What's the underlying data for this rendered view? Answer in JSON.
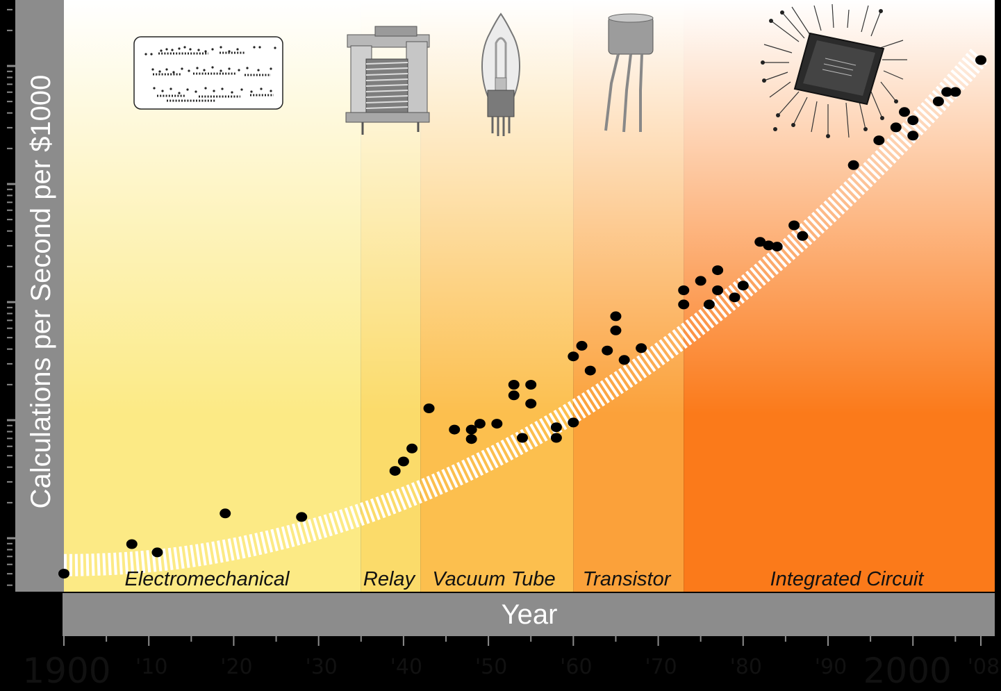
{
  "chart_data": {
    "type": "scatter",
    "title": "",
    "xlabel": "Year",
    "ylabel": "Calculations per Second per $1000",
    "yscale": "log",
    "xlim": [
      1900,
      2008
    ],
    "x_tick_labels": [
      {
        "x": 1900,
        "label": "1900"
      },
      {
        "x": 1910,
        "label": "'10"
      },
      {
        "x": 1920,
        "label": "'20"
      },
      {
        "x": 1930,
        "label": "'30"
      },
      {
        "x": 1940,
        "label": "'40"
      },
      {
        "x": 1950,
        "label": "'50"
      },
      {
        "x": 1960,
        "label": "'60"
      },
      {
        "x": 1970,
        "label": "'70"
      },
      {
        "x": 1980,
        "label": "'80"
      },
      {
        "x": 1990,
        "label": "'90"
      },
      {
        "x": 2000,
        "label": "2000"
      },
      {
        "x": 2008,
        "label": "'08"
      }
    ],
    "eras": [
      {
        "label": "Electromechanical",
        "start": 1900,
        "end": 1935,
        "color": "#fcea85"
      },
      {
        "label": "Relay",
        "start": 1935,
        "end": 1942,
        "color": "#fbdb6a"
      },
      {
        "label": "Vacuum Tube",
        "start": 1942,
        "end": 1960,
        "color": "#fcbf4e"
      },
      {
        "label": "Transistor",
        "start": 1960,
        "end": 1973,
        "color": "#fba13a"
      },
      {
        "label": "Integrated Circuit",
        "start": 1973,
        "end": 2008,
        "color": "#fb7a1a"
      }
    ],
    "era_icons": [
      "punch-card-icon",
      "relay-icon",
      "vacuum-tube-icon",
      "transistor-icon",
      "integrated-circuit-icon"
    ],
    "trend": "exponential band",
    "points": [
      {
        "x": 1900,
        "y": -5.3
      },
      {
        "x": 1908,
        "y": -5.05
      },
      {
        "x": 1911,
        "y": -5.12
      },
      {
        "x": 1919,
        "y": -4.79
      },
      {
        "x": 1928,
        "y": -4.82
      },
      {
        "x": 1939,
        "y": -4.43
      },
      {
        "x": 1940,
        "y": -4.35
      },
      {
        "x": 1941,
        "y": -4.24
      },
      {
        "x": 1943,
        "y": -3.9
      },
      {
        "x": 1946,
        "y": -4.08
      },
      {
        "x": 1948,
        "y": -4.08
      },
      {
        "x": 1948,
        "y": -4.16
      },
      {
        "x": 1949,
        "y": -4.03
      },
      {
        "x": 1951,
        "y": -4.03
      },
      {
        "x": 1953,
        "y": -3.7
      },
      {
        "x": 1953,
        "y": -3.79
      },
      {
        "x": 1954,
        "y": -4.15
      },
      {
        "x": 1955,
        "y": -3.7
      },
      {
        "x": 1955,
        "y": -3.86
      },
      {
        "x": 1958,
        "y": -4.06
      },
      {
        "x": 1958,
        "y": -4.15
      },
      {
        "x": 1960,
        "y": -3.46
      },
      {
        "x": 1960,
        "y": -4.02
      },
      {
        "x": 1961,
        "y": -3.37
      },
      {
        "x": 1962,
        "y": -3.58
      },
      {
        "x": 1964,
        "y": -3.41
      },
      {
        "x": 1965,
        "y": -3.12
      },
      {
        "x": 1965,
        "y": -3.24
      },
      {
        "x": 1966,
        "y": -3.49
      },
      {
        "x": 1968,
        "y": -3.39
      },
      {
        "x": 1973,
        "y": -2.9
      },
      {
        "x": 1973,
        "y": -3.02
      },
      {
        "x": 1975,
        "y": -2.82
      },
      {
        "x": 1976,
        "y": -3.02
      },
      {
        "x": 1977,
        "y": -2.73
      },
      {
        "x": 1977,
        "y": -2.9
      },
      {
        "x": 1979,
        "y": -2.96
      },
      {
        "x": 1980,
        "y": -2.86
      },
      {
        "x": 1982,
        "y": -2.49
      },
      {
        "x": 1983,
        "y": -2.52
      },
      {
        "x": 1984,
        "y": -2.53
      },
      {
        "x": 1986,
        "y": -2.35
      },
      {
        "x": 1987,
        "y": -2.44
      },
      {
        "x": 1993,
        "y": -1.84
      },
      {
        "x": 1996,
        "y": -1.63
      },
      {
        "x": 1998,
        "y": -1.52
      },
      {
        "x": 1999,
        "y": -1.39
      },
      {
        "x": 2000,
        "y": -1.46
      },
      {
        "x": 2000,
        "y": -1.59
      },
      {
        "x": 2003,
        "y": -1.3
      },
      {
        "x": 2004,
        "y": -1.22
      },
      {
        "x": 2005,
        "y": -1.22
      },
      {
        "x": 2008,
        "y": -0.95
      }
    ]
  }
}
